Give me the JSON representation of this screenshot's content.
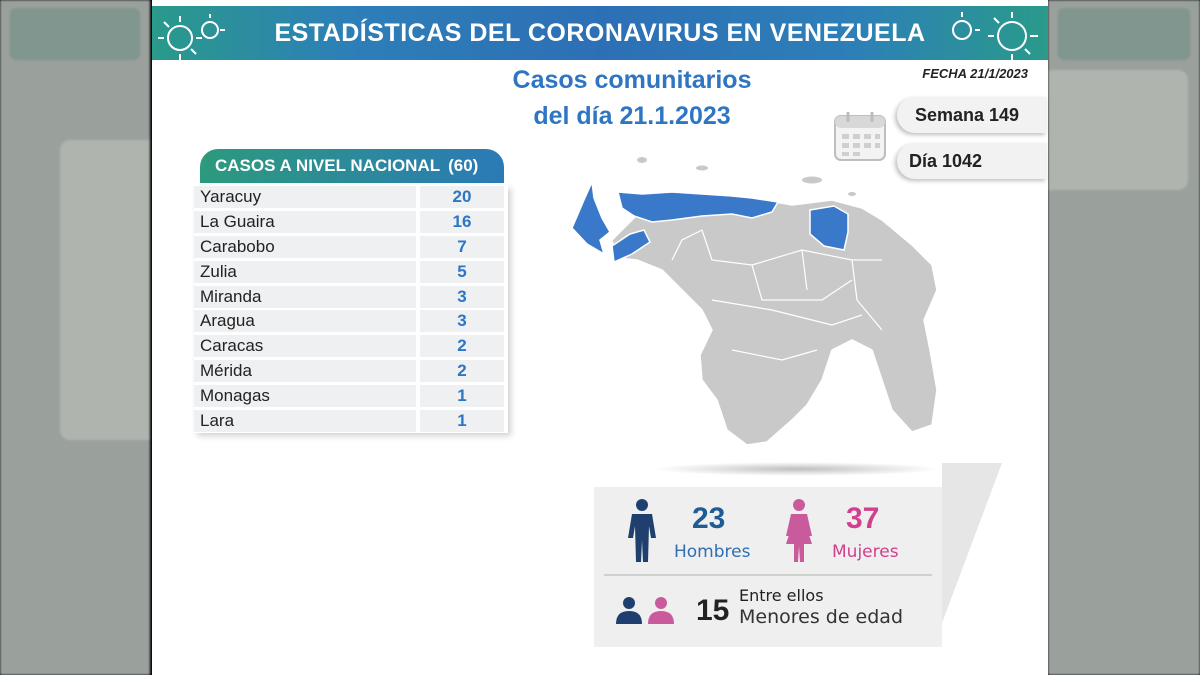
{
  "banner": {
    "title": "ESTADÍSTICAS DEL CORONAVIRUS EN VENEZUELA"
  },
  "header": {
    "subtitle_line1": "Casos comunitarios",
    "subtitle_line2": "del día 21.1.2023",
    "fecha": "FECHA 21/1/2023",
    "semana": "Semana 149",
    "dia": "Día 1042"
  },
  "table": {
    "title": "CASOS A NIVEL NACIONAL",
    "total": "(60)",
    "rows": [
      {
        "state": "Yaracuy",
        "cases": "20"
      },
      {
        "state": "La Guaira",
        "cases": "16"
      },
      {
        "state": "Carabobo",
        "cases": "7"
      },
      {
        "state": "Zulia",
        "cases": "5"
      },
      {
        "state": "Miranda",
        "cases": "3"
      },
      {
        "state": "Aragua",
        "cases": "3"
      },
      {
        "state": "Caracas",
        "cases": "2"
      },
      {
        "state": "Mérida",
        "cases": "2"
      },
      {
        "state": "Monagas",
        "cases": "1"
      },
      {
        "state": "Lara",
        "cases": "1"
      }
    ]
  },
  "stats": {
    "men_count": "23",
    "men_label": "Hombres",
    "women_count": "37",
    "women_label": "Mujeres",
    "minors_count": "15",
    "minors_line1": "Entre ellos",
    "minors_line2": "Menores de edad"
  },
  "colors": {
    "accent_blue": "#2e75c2",
    "highlight_state": "#3a78c9",
    "women_pink": "#d23f8c",
    "men_navy": "#1f5b95"
  }
}
